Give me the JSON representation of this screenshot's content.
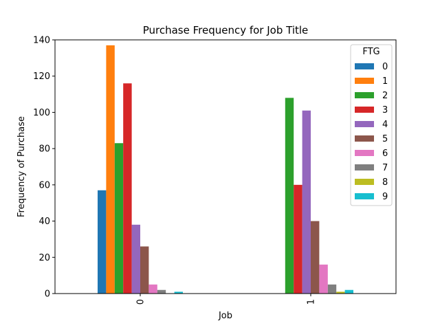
{
  "chart_data": {
    "type": "bar",
    "title": "Purchase Frequency for Job Title",
    "xlabel": "Job",
    "ylabel": "Frequency of Purchase",
    "categories": [
      "0",
      "1"
    ],
    "ylim": [
      0,
      140
    ],
    "yticks": [
      0,
      20,
      40,
      60,
      80,
      100,
      120,
      140
    ],
    "grid": false,
    "legend": {
      "title": "FTG",
      "placement": "top-right"
    },
    "series": [
      {
        "name": "0",
        "color": "#1f77b4",
        "values": [
          57,
          0
        ]
      },
      {
        "name": "1",
        "color": "#ff7f0e",
        "values": [
          137,
          0
        ]
      },
      {
        "name": "2",
        "color": "#2ca02c",
        "values": [
          83,
          108
        ]
      },
      {
        "name": "3",
        "color": "#d62728",
        "values": [
          116,
          60
        ]
      },
      {
        "name": "4",
        "color": "#9467bd",
        "values": [
          38,
          101
        ]
      },
      {
        "name": "5",
        "color": "#8c564b",
        "values": [
          26,
          40
        ]
      },
      {
        "name": "6",
        "color": "#e377c2",
        "values": [
          5,
          16
        ]
      },
      {
        "name": "7",
        "color": "#7f7f7f",
        "values": [
          2,
          5
        ]
      },
      {
        "name": "8",
        "color": "#bcbd22",
        "values": [
          0,
          1
        ]
      },
      {
        "name": "9",
        "color": "#17becf",
        "values": [
          1,
          2
        ]
      }
    ]
  }
}
